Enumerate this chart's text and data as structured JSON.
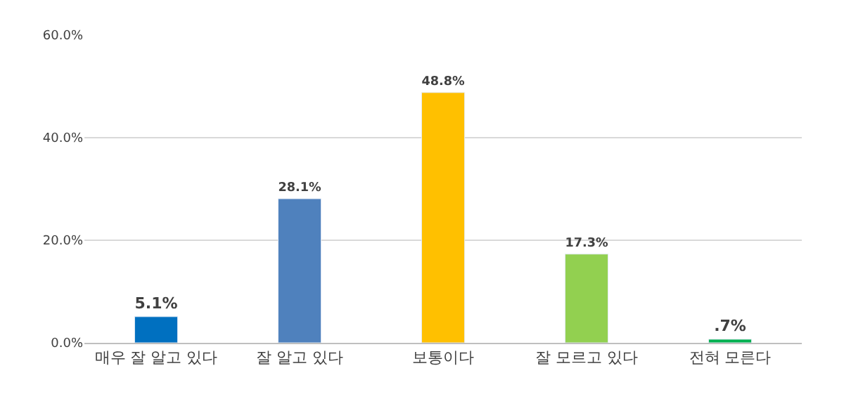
{
  "chart_data": {
    "type": "bar",
    "categories": [
      "매우 잘 알고 있다",
      "잘 알고 있다",
      "보통이다",
      "잘 모르고 있다",
      "전혀 모른다"
    ],
    "values": [
      5.1,
      28.1,
      48.8,
      17.3,
      0.7
    ],
    "colors": [
      "#0070c0",
      "#4f81bd",
      "#ffc000",
      "#92d050",
      "#00b050"
    ],
    "value_labels": [
      "5.1%",
      "28.1%",
      "48.8%",
      "17.3%",
      ".7%"
    ],
    "ylim": [
      0,
      60
    ],
    "yticks": [
      {
        "value": 0,
        "label": "0.0%"
      },
      {
        "value": 20,
        "label": "20.0%"
      },
      {
        "value": 40,
        "label": "40.0%"
      },
      {
        "value": 60,
        "label": "60.0%"
      }
    ],
    "grid": "y"
  }
}
